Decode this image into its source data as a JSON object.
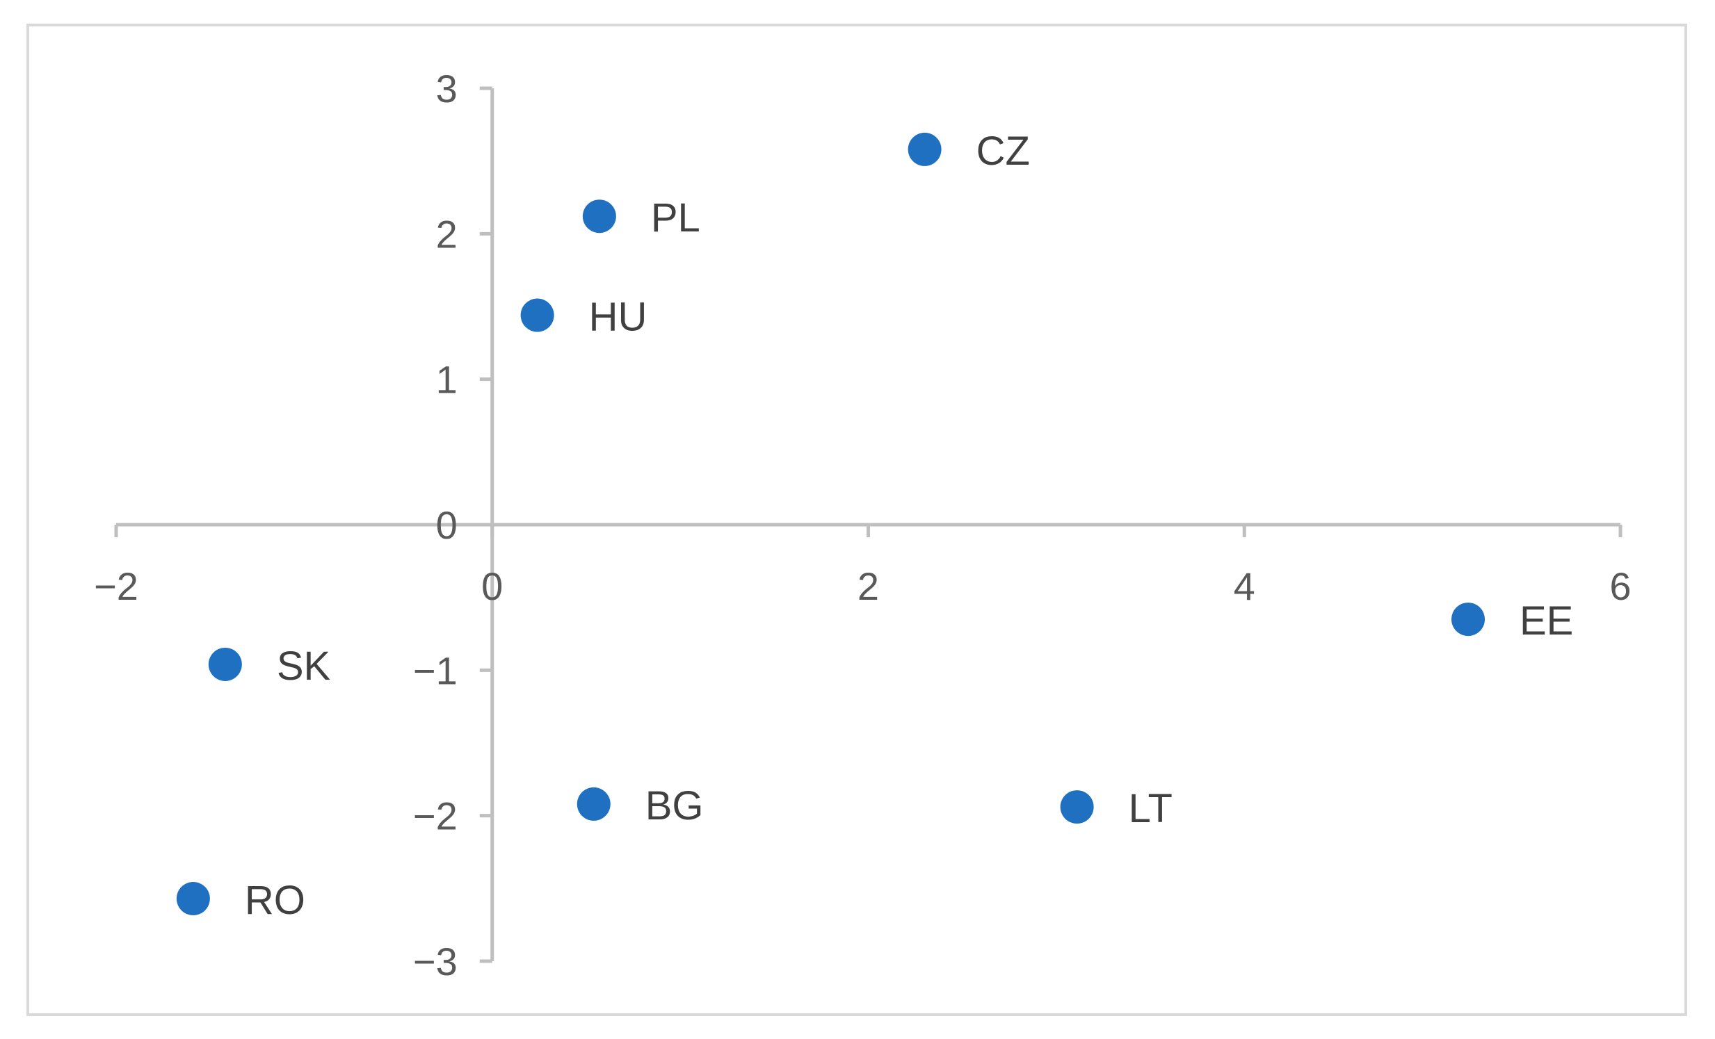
{
  "chart_data": {
    "type": "scatter",
    "title": "",
    "xlabel": "",
    "ylabel": "",
    "xlim": [
      -2,
      6
    ],
    "ylim": [
      -3,
      3
    ],
    "x_ticks": [
      -2,
      0,
      2,
      4,
      6
    ],
    "y_ticks": [
      -3,
      -2,
      -1,
      0,
      1,
      2,
      3
    ],
    "x_tick_labels": [
      "−2",
      "0",
      "2",
      "4",
      "6"
    ],
    "y_tick_labels": [
      "−3",
      "−2",
      "−1",
      "0",
      "1",
      "2",
      "3"
    ],
    "grid": false,
    "legend": "none",
    "marker_color": "#1f70c1",
    "points": [
      {
        "label": "CZ",
        "x": 2.3,
        "y": 2.58
      },
      {
        "label": "PL",
        "x": 0.57,
        "y": 2.12
      },
      {
        "label": "HU",
        "x": 0.24,
        "y": 1.44
      },
      {
        "label": "SK",
        "x": -1.42,
        "y": -0.96
      },
      {
        "label": "EE",
        "x": 5.19,
        "y": -0.65
      },
      {
        "label": "BG",
        "x": 0.54,
        "y": -1.92
      },
      {
        "label": "LT",
        "x": 3.11,
        "y": -1.94
      },
      {
        "label": "RO",
        "x": -1.59,
        "y": -2.57
      }
    ]
  }
}
